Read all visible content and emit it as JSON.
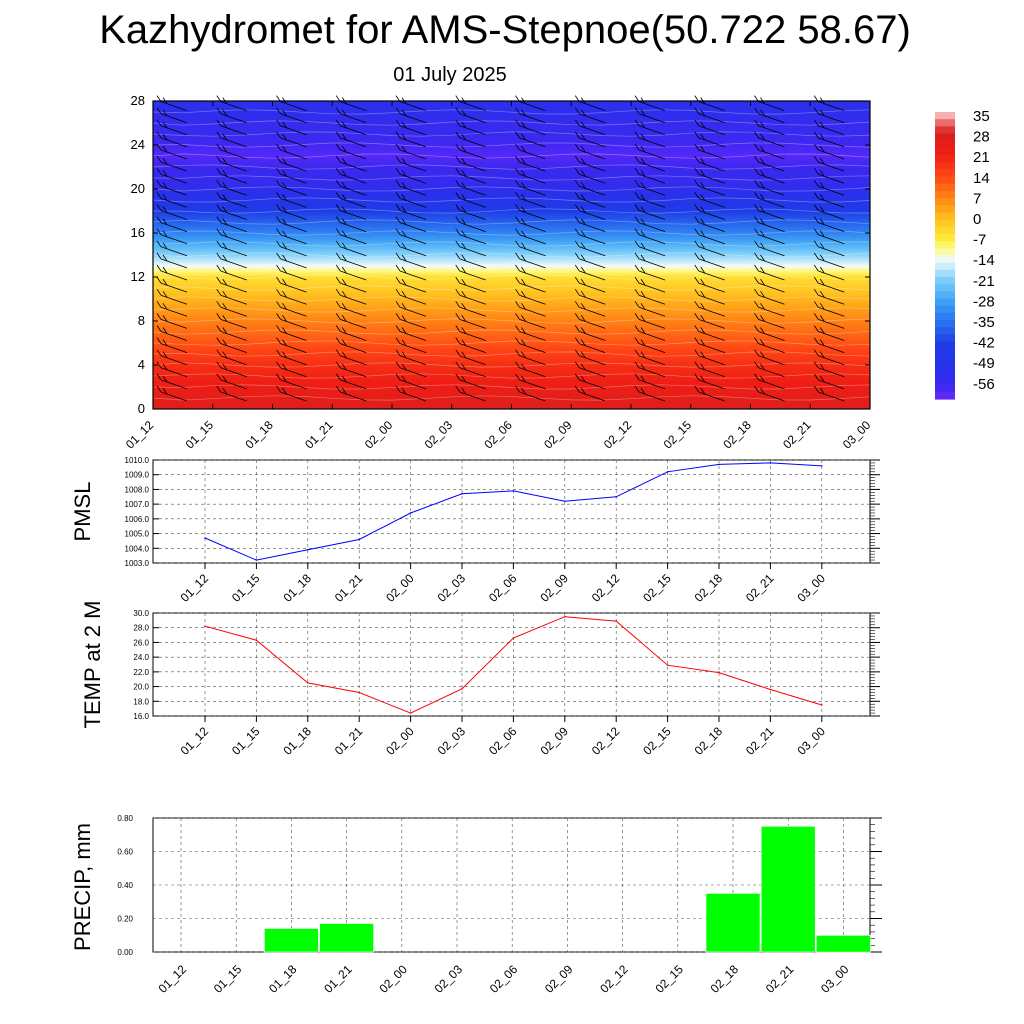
{
  "title": "Kazhydromet for AMS-Stepnoe(50.722 58.67)",
  "subtitle": "01 July 2025",
  "time_labels": [
    "01_12",
    "01_15",
    "01_18",
    "01_21",
    "02_00",
    "02_03",
    "02_06",
    "02_09",
    "02_12",
    "02_15",
    "02_18",
    "02_21",
    "03_00"
  ],
  "chart_data": [
    {
      "type": "heatmap",
      "name": "vertical-section",
      "x": [
        "01_12",
        "01_15",
        "01_18",
        "01_21",
        "02_00",
        "02_03",
        "02_06",
        "02_09",
        "02_12",
        "02_15",
        "02_18",
        "02_21",
        "03_00"
      ],
      "ylim": [
        0,
        28
      ],
      "yticks": [
        0,
        4,
        8,
        12,
        16,
        20,
        24,
        28
      ],
      "colorbar": {
        "labels": [
          "35",
          "28",
          "21",
          "14",
          "7",
          "0",
          "-7",
          "-14",
          "-21",
          "-28",
          "-35",
          "-42",
          "-49",
          "-56"
        ],
        "range": [
          -60,
          35
        ]
      },
      "temperature_by_level": [
        {
          "level": 0,
          "value": 26
        },
        {
          "level": 4,
          "value": 18
        },
        {
          "level": 8,
          "value": 7
        },
        {
          "level": 12,
          "value": -5
        },
        {
          "level": 13,
          "value": -14
        },
        {
          "level": 16,
          "value": -32
        },
        {
          "level": 20,
          "value": -52
        },
        {
          "level": 23,
          "value": -58
        },
        {
          "level": 28,
          "value": -50
        }
      ],
      "grid": false
    },
    {
      "type": "line",
      "name": "pmsl",
      "ylabel": "PMSL",
      "x": [
        "01_12",
        "01_15",
        "01_18",
        "01_21",
        "02_00",
        "02_03",
        "02_06",
        "02_09",
        "02_12",
        "02_15",
        "02_18",
        "02_21",
        "03_00"
      ],
      "values": [
        1004.7,
        1003.2,
        1003.9,
        1004.6,
        1006.4,
        1007.7,
        1007.9,
        1007.2,
        1007.5,
        1009.2,
        1009.7,
        1009.8,
        1009.6
      ],
      "ylim": [
        1003.0,
        1010.0
      ],
      "yticks": [
        "1003.0",
        "1004.0",
        "1005.0",
        "1006.0",
        "1007.0",
        "1008.0",
        "1009.0",
        "1010.0"
      ],
      "color": "#0000ff",
      "grid": true
    },
    {
      "type": "line",
      "name": "temp2m",
      "ylabel": "TEMP at 2 M",
      "x": [
        "01_12",
        "01_15",
        "01_18",
        "01_21",
        "02_00",
        "02_03",
        "02_06",
        "02_09",
        "02_12",
        "02_15",
        "02_18",
        "02_21",
        "03_00"
      ],
      "values": [
        28.2,
        26.3,
        20.5,
        19.2,
        16.4,
        19.7,
        26.6,
        29.5,
        28.9,
        22.9,
        21.9,
        19.6,
        17.5
      ],
      "ylim": [
        16.0,
        30.0
      ],
      "yticks": [
        "16.0",
        "18.0",
        "20.0",
        "22.0",
        "24.0",
        "26.0",
        "28.0",
        "30.0"
      ],
      "color": "#ff0000",
      "grid": true
    },
    {
      "type": "bar",
      "name": "precip",
      "ylabel": "PRECIP, mm",
      "categories": [
        "01_12",
        "01_15",
        "01_18",
        "01_21",
        "02_00",
        "02_03",
        "02_06",
        "02_09",
        "02_12",
        "02_15",
        "02_18",
        "02_21",
        "03_00"
      ],
      "values": [
        0,
        0,
        0.14,
        0.17,
        0,
        0,
        0,
        0,
        0,
        0,
        0.35,
        0.75,
        0.1
      ],
      "ylim": [
        0,
        0.8
      ],
      "yticks": [
        "0.00",
        "0.20",
        "0.40",
        "0.60",
        "0.80"
      ],
      "color": "#00ff00",
      "grid": true
    }
  ]
}
